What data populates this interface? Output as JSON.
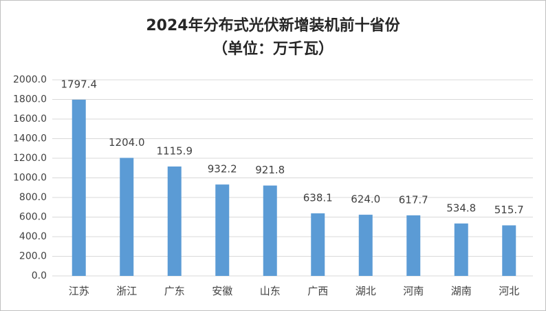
{
  "chart_data": {
    "type": "bar",
    "title": "2024年分布式光伏新增装机前十省份",
    "subtitle": "（单位：万千瓦）",
    "categories": [
      "江苏",
      "浙江",
      "广东",
      "安徽",
      "山东",
      "广西",
      "湖北",
      "河南",
      "湖南",
      "河北"
    ],
    "values": [
      1797.4,
      1204.0,
      1115.9,
      932.2,
      921.8,
      638.1,
      624.0,
      617.7,
      534.8,
      515.7
    ],
    "value_labels": [
      "1797.4",
      "1204.0",
      "1115.9",
      "932.2",
      "921.8",
      "638.1",
      "624.0",
      "617.7",
      "534.8",
      "515.7"
    ],
    "color": "#5b9bd5",
    "ylim": [
      0,
      2000
    ],
    "yticks": [
      {
        "value": 0,
        "label": "0.0"
      },
      {
        "value": 200,
        "label": "200.0"
      },
      {
        "value": 400,
        "label": "400.0"
      },
      {
        "value": 600,
        "label": "600.0"
      },
      {
        "value": 800,
        "label": "800.0"
      },
      {
        "value": 1000,
        "label": "1000.0"
      },
      {
        "value": 1200,
        "label": "1200.0"
      },
      {
        "value": 1400,
        "label": "1400.0"
      },
      {
        "value": 1600,
        "label": "1600.0"
      },
      {
        "value": 1800,
        "label": "1800.0"
      },
      {
        "value": 2000,
        "label": "2000.0"
      }
    ],
    "grid": true
  }
}
